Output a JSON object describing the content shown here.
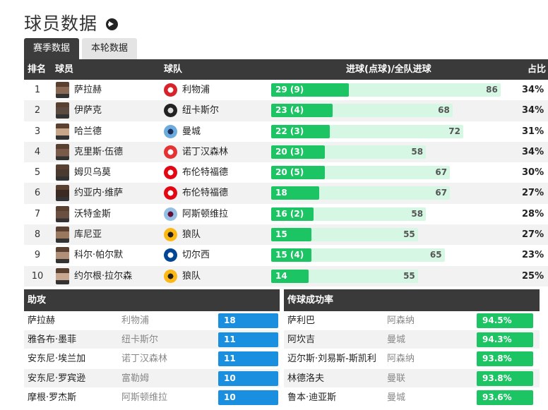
{
  "page": {
    "title": "球员数据"
  },
  "tabs": [
    {
      "label": "赛季数据",
      "active": true
    },
    {
      "label": "本轮数据",
      "active": false
    }
  ],
  "scorers": {
    "headers": {
      "rank": "排名",
      "player": "球员",
      "team": "球队",
      "goals": "进球(点球)/全队进球",
      "share": "占比"
    },
    "accent": "#1dc464",
    "track": "#d6f7e4",
    "rows": [
      {
        "rank": "1",
        "player": "萨拉赫",
        "team": "利物浦",
        "goals": 29,
        "goals_label": "29 (9)",
        "team_goals": 86,
        "share": "34%",
        "crest": "liverpool-crest-icon"
      },
      {
        "rank": "2",
        "player": "伊萨克",
        "team": "纽卡斯尔",
        "goals": 23,
        "goals_label": "23 (4)",
        "team_goals": 68,
        "share": "34%",
        "crest": "newcastle-crest-icon"
      },
      {
        "rank": "3",
        "player": "哈兰德",
        "team": "曼城",
        "goals": 22,
        "goals_label": "22 (3)",
        "team_goals": 72,
        "share": "31%",
        "crest": "man-city-crest-icon"
      },
      {
        "rank": "4",
        "player": "克里斯·伍德",
        "team": "诺丁汉森林",
        "goals": 20,
        "goals_label": "20 (3)",
        "team_goals": 58,
        "share": "34%",
        "crest": "nottingham-forest-crest-icon"
      },
      {
        "rank": "5",
        "player": "姆贝乌莫",
        "team": "布伦特福德",
        "goals": 20,
        "goals_label": "20 (5)",
        "team_goals": 67,
        "share": "30%",
        "crest": "brentford-crest-icon"
      },
      {
        "rank": "6",
        "player": "约亚内·维萨",
        "team": "布伦特福德",
        "goals": 18,
        "goals_label": "18",
        "team_goals": 67,
        "share": "27%",
        "crest": "brentford-crest-icon"
      },
      {
        "rank": "7",
        "player": "沃特金斯",
        "team": "阿斯顿维拉",
        "goals": 16,
        "goals_label": "16 (2)",
        "team_goals": 58,
        "share": "28%",
        "crest": "aston-villa-crest-icon"
      },
      {
        "rank": "8",
        "player": "库尼亚",
        "team": "狼队",
        "goals": 15,
        "goals_label": "15",
        "team_goals": 55,
        "share": "27%",
        "crest": "wolves-crest-icon"
      },
      {
        "rank": "9",
        "player": "科尔·帕尔默",
        "team": "切尔西",
        "goals": 15,
        "goals_label": "15 (4)",
        "team_goals": 65,
        "share": "23%",
        "crest": "chelsea-crest-icon"
      },
      {
        "rank": "10",
        "player": "约尔根·拉尔森",
        "team": "狼队",
        "goals": 14,
        "goals_label": "14",
        "team_goals": 55,
        "share": "25%",
        "crest": "wolves-crest-icon"
      }
    ]
  },
  "assists": {
    "title": "助攻",
    "accent": "#1a8fdf",
    "rows": [
      {
        "player": "萨拉赫",
        "team": "利物浦",
        "value": "18"
      },
      {
        "player": "雅各布·墨菲",
        "team": "纽卡斯尔",
        "value": "11"
      },
      {
        "player": "安东尼·埃兰加",
        "team": "诺丁汉森林",
        "value": "11"
      },
      {
        "player": "安东尼·罗宾逊",
        "team": "富勒姆",
        "value": "10"
      },
      {
        "player": "摩根·罗杰斯",
        "team": "阿斯顿维拉",
        "value": "10"
      }
    ]
  },
  "passing": {
    "title": "传球成功率",
    "accent": "#1dc464",
    "rows": [
      {
        "player": "萨利巴",
        "team": "阿森纳",
        "value": "94.5%"
      },
      {
        "player": "阿坎吉",
        "team": "曼城",
        "value": "94.3%"
      },
      {
        "player": "迈尔斯·刘易斯-斯凯利",
        "team": "阿森纳",
        "value": "93.8%"
      },
      {
        "player": "林德洛夫",
        "team": "曼联",
        "value": "93.8%"
      },
      {
        "player": "鲁本·迪亚斯",
        "team": "曼城",
        "value": "93.6%"
      }
    ]
  }
}
